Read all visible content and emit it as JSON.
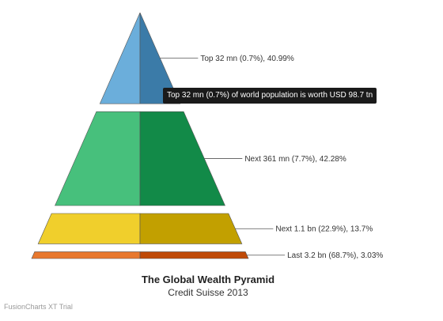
{
  "chart_data": {
    "type": "pyramid",
    "title": "The Global Wealth Pyramid",
    "subtitle": "Credit Suisse 2013",
    "segments": [
      {
        "label": "Top 32 mn (0.7%), 40.99%",
        "value": 40.99,
        "color_light": "#6baedb",
        "color_dark": "#3b7ba8"
      },
      {
        "label": "Next 361 mn (7.7%), 42.28%",
        "value": 42.28,
        "color_light": "#47c07c",
        "color_dark": "#128a48"
      },
      {
        "label": "Next 1.1 bn (22.9%), 13.7%",
        "value": 13.7,
        "color_light": "#f0cf2c",
        "color_dark": "#c2a000"
      },
      {
        "label": "Last 3.2 bn (68.7%), 3.03%",
        "value": 3.03,
        "color_light": "#e8782e",
        "color_dark": "#bf4a08"
      }
    ],
    "tooltip": "Top 32 mn (0.7%) of world population is worth USD 98.7 tn"
  },
  "watermark": "FusionCharts XT Trial"
}
